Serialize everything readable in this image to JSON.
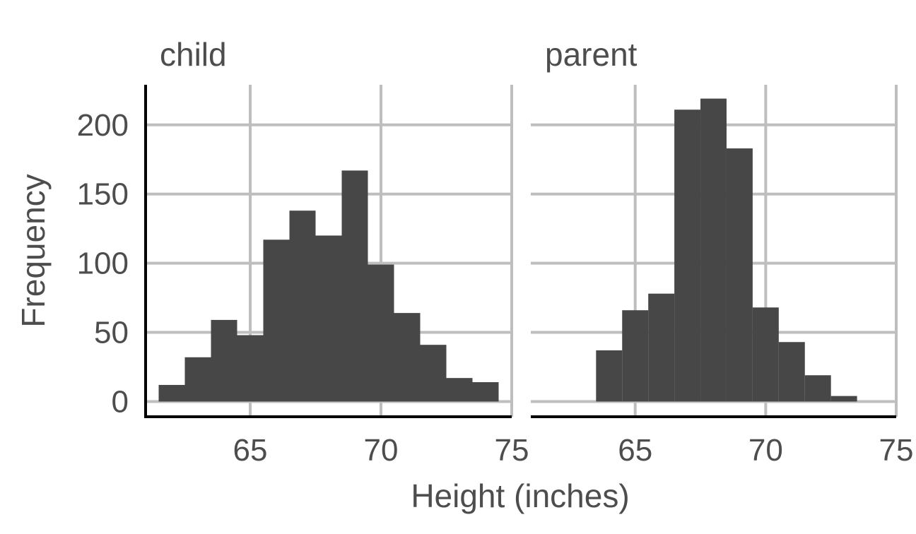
{
  "chart_data": {
    "type": "bar",
    "subtype": "histogram-faceted",
    "xlabel": "Height (inches)",
    "ylabel": "Frequency",
    "xlim": [
      61,
      75
    ],
    "ylim": [
      -11,
      229
    ],
    "xticks": [
      65,
      70,
      75
    ],
    "yticks": [
      0,
      50,
      100,
      150,
      200
    ],
    "bin_width": 1,
    "grid": true,
    "bar_color": "#474747",
    "grid_color": "#bebebe",
    "facets": [
      {
        "label": "child",
        "bins": [
          {
            "x0": 61.5,
            "x1": 62.5,
            "count": 12
          },
          {
            "x0": 62.5,
            "x1": 63.5,
            "count": 32
          },
          {
            "x0": 63.5,
            "x1": 64.5,
            "count": 59
          },
          {
            "x0": 64.5,
            "x1": 65.5,
            "count": 48
          },
          {
            "x0": 65.5,
            "x1": 66.5,
            "count": 117
          },
          {
            "x0": 66.5,
            "x1": 67.5,
            "count": 138
          },
          {
            "x0": 67.5,
            "x1": 68.5,
            "count": 120
          },
          {
            "x0": 68.5,
            "x1": 69.5,
            "count": 167
          },
          {
            "x0": 69.5,
            "x1": 70.5,
            "count": 99
          },
          {
            "x0": 70.5,
            "x1": 71.5,
            "count": 64
          },
          {
            "x0": 71.5,
            "x1": 72.5,
            "count": 41
          },
          {
            "x0": 72.5,
            "x1": 73.5,
            "count": 17
          },
          {
            "x0": 73.5,
            "x1": 74.5,
            "count": 14
          }
        ]
      },
      {
        "label": "parent",
        "bins": [
          {
            "x0": 63.5,
            "x1": 64.5,
            "count": 37
          },
          {
            "x0": 64.5,
            "x1": 65.5,
            "count": 66
          },
          {
            "x0": 65.5,
            "x1": 66.5,
            "count": 78
          },
          {
            "x0": 66.5,
            "x1": 67.5,
            "count": 211
          },
          {
            "x0": 67.5,
            "x1": 68.5,
            "count": 219
          },
          {
            "x0": 68.5,
            "x1": 69.5,
            "count": 183
          },
          {
            "x0": 69.5,
            "x1": 70.5,
            "count": 68
          },
          {
            "x0": 70.5,
            "x1": 71.5,
            "count": 43
          },
          {
            "x0": 71.5,
            "x1": 72.5,
            "count": 19
          },
          {
            "x0": 72.5,
            "x1": 73.5,
            "count": 4
          }
        ]
      }
    ]
  }
}
